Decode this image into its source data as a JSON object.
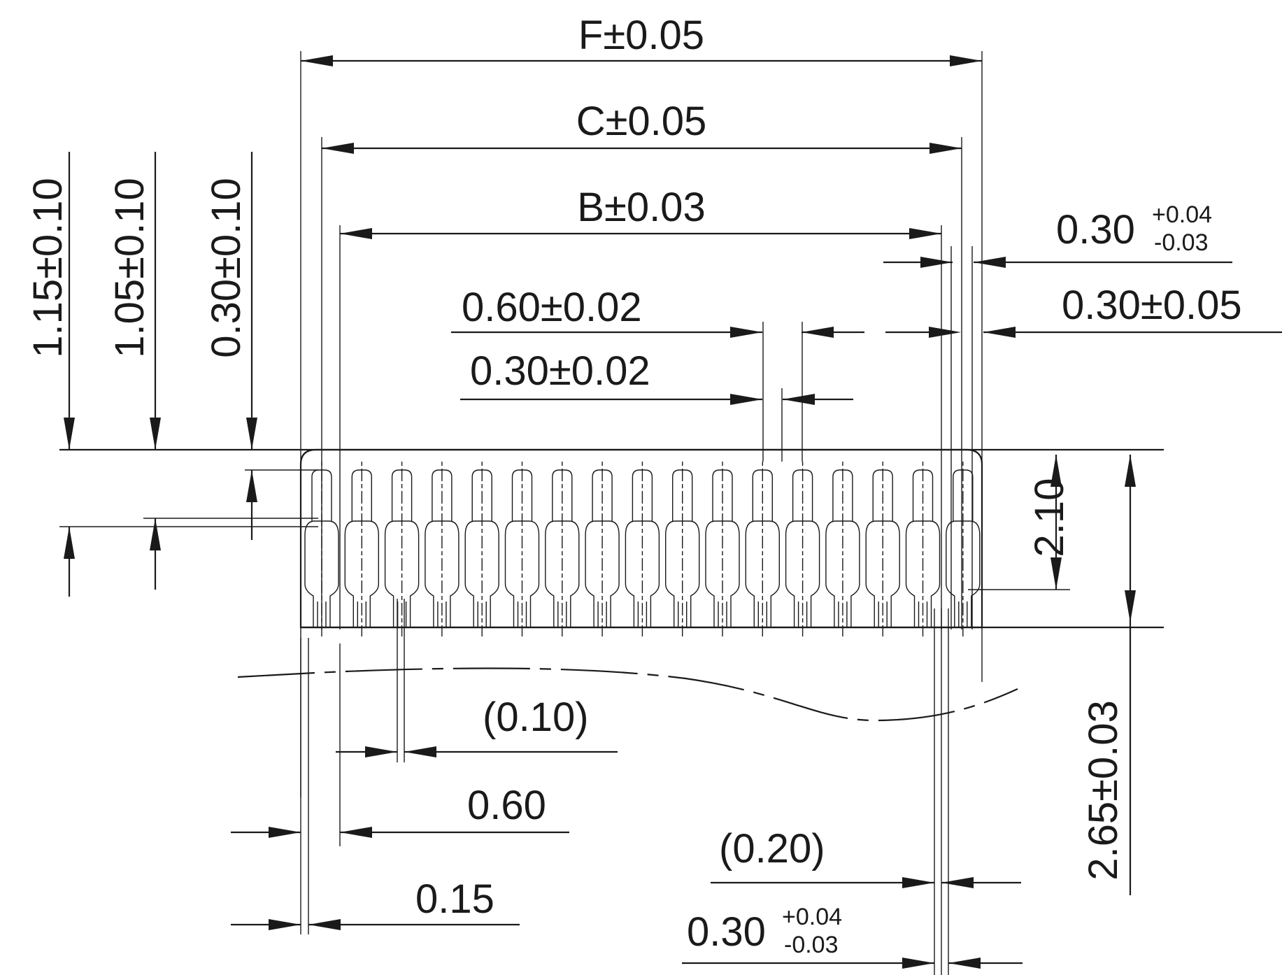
{
  "dimensions": {
    "f_width": "F±0.05",
    "c_width": "C±0.05",
    "b_width": "B±0.03",
    "pitch": "0.60±0.02",
    "contact_width": "0.30±0.02",
    "right_gap_top": {
      "base": "0.30",
      "plus": "+0.04",
      "minus": "-0.03"
    },
    "right_gap_mid": "0.30±0.05",
    "height_1_15": "1.15±0.10",
    "height_1_05": "1.05±0.10",
    "height_0_30": "0.30±0.10",
    "height_2_10": "2.10",
    "height_2_65": "2.65±0.03",
    "ref_0_10": "(0.10)",
    "pitch_0_60": "0.60",
    "edge_0_15": "0.15",
    "ref_0_20": "(0.20)",
    "bottom_gap": {
      "base": "0.30",
      "plus": "+0.04",
      "minus": "-0.03"
    }
  },
  "connector": {
    "contact_count": 17,
    "outline_color": "#1a1a1a"
  }
}
